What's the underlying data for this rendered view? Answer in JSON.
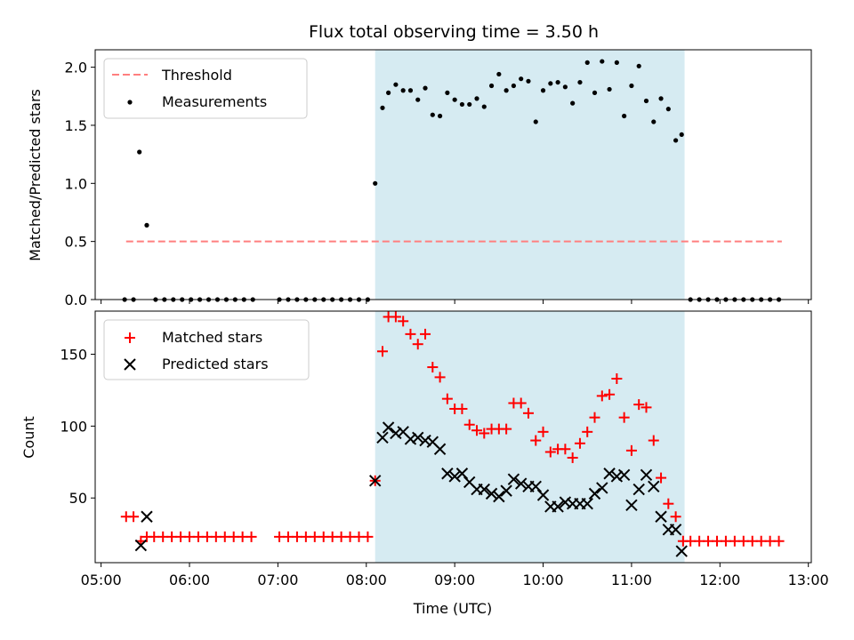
{
  "chart_data": [
    {
      "type": "scatter",
      "title": "Flux total observing time = 3.50 h",
      "xlabel": "",
      "ylabel": "Matched/Predicted stars",
      "xlim": [
        "04:56",
        "13:02"
      ],
      "ylim": [
        0,
        2.15
      ],
      "yticks": [
        0.0,
        0.5,
        1.0,
        1.5,
        2.0
      ],
      "ytick_labels": [
        "0.0",
        "0.5",
        "1.0",
        "1.5",
        "2.0"
      ],
      "grid": false,
      "legend_position": "upper-left",
      "shaded_region": {
        "start": "08:06",
        "end": "11:36",
        "color": "#add8e6"
      },
      "series": [
        {
          "name": "Threshold",
          "style": "dashed-line",
          "color": "#ff7f7f",
          "points": [
            [
              "05:17",
              0.5
            ],
            [
              "12:42",
              0.5
            ]
          ]
        },
        {
          "name": "Measurements",
          "style": "dot",
          "color": "#000000",
          "points": [
            [
              "05:16",
              0
            ],
            [
              "05:22",
              0
            ],
            [
              "05:26",
              1.27
            ],
            [
              "05:31",
              0.64
            ],
            [
              "05:37",
              0
            ],
            [
              "05:43",
              0
            ],
            [
              "05:49",
              0
            ],
            [
              "05:55",
              0
            ],
            [
              "06:01",
              0
            ],
            [
              "06:07",
              0
            ],
            [
              "06:13",
              0
            ],
            [
              "06:19",
              0
            ],
            [
              "06:25",
              0
            ],
            [
              "06:31",
              0
            ],
            [
              "06:37",
              0
            ],
            [
              "06:43",
              0
            ],
            [
              "07:01",
              0
            ],
            [
              "07:07",
              0
            ],
            [
              "07:13",
              0
            ],
            [
              "07:19",
              0
            ],
            [
              "07:25",
              0
            ],
            [
              "07:31",
              0
            ],
            [
              "07:37",
              0
            ],
            [
              "07:43",
              0
            ],
            [
              "07:49",
              0
            ],
            [
              "07:55",
              0
            ],
            [
              "08:01",
              0
            ],
            [
              "08:06",
              1.0
            ],
            [
              "08:11",
              1.65
            ],
            [
              "08:15",
              1.78
            ],
            [
              "08:20",
              1.85
            ],
            [
              "08:25",
              1.8
            ],
            [
              "08:30",
              1.8
            ],
            [
              "08:35",
              1.72
            ],
            [
              "08:40",
              1.82
            ],
            [
              "08:45",
              1.59
            ],
            [
              "08:50",
              1.58
            ],
            [
              "08:55",
              1.78
            ],
            [
              "09:00",
              1.72
            ],
            [
              "09:05",
              1.68
            ],
            [
              "09:10",
              1.68
            ],
            [
              "09:15",
              1.73
            ],
            [
              "09:20",
              1.66
            ],
            [
              "09:25",
              1.84
            ],
            [
              "09:30",
              1.94
            ],
            [
              "09:35",
              1.8
            ],
            [
              "09:40",
              1.84
            ],
            [
              "09:45",
              1.9
            ],
            [
              "09:50",
              1.88
            ],
            [
              "09:55",
              1.53
            ],
            [
              "10:00",
              1.8
            ],
            [
              "10:05",
              1.86
            ],
            [
              "10:10",
              1.87
            ],
            [
              "10:15",
              1.83
            ],
            [
              "10:20",
              1.69
            ],
            [
              "10:25",
              1.87
            ],
            [
              "10:30",
              2.04
            ],
            [
              "10:35",
              1.78
            ],
            [
              "10:40",
              2.05
            ],
            [
              "10:45",
              1.81
            ],
            [
              "10:50",
              2.04
            ],
            [
              "10:55",
              1.58
            ],
            [
              "11:00",
              1.84
            ],
            [
              "11:05",
              2.01
            ],
            [
              "11:10",
              1.71
            ],
            [
              "11:15",
              1.53
            ],
            [
              "11:20",
              1.73
            ],
            [
              "11:25",
              1.64
            ],
            [
              "11:30",
              1.37
            ],
            [
              "11:34",
              1.42
            ],
            [
              "11:40",
              0
            ],
            [
              "11:46",
              0
            ],
            [
              "11:52",
              0
            ],
            [
              "11:58",
              0
            ],
            [
              "12:04",
              0
            ],
            [
              "12:10",
              0
            ],
            [
              "12:16",
              0
            ],
            [
              "12:22",
              0
            ],
            [
              "12:28",
              0
            ],
            [
              "12:34",
              0
            ],
            [
              "12:40",
              0
            ]
          ]
        }
      ]
    },
    {
      "type": "scatter",
      "title": "",
      "xlabel": "Time (UTC)",
      "ylabel": "Count",
      "xlim": [
        "04:56",
        "13:02"
      ],
      "ylim": [
        5,
        180
      ],
      "xticks": [
        "05:00",
        "06:00",
        "07:00",
        "08:00",
        "09:00",
        "10:00",
        "11:00",
        "12:00",
        "13:00"
      ],
      "yticks": [
        50,
        100,
        150
      ],
      "ytick_labels": [
        "50",
        "100",
        "150"
      ],
      "grid": false,
      "legend_position": "upper-left",
      "shaded_region": {
        "start": "08:06",
        "end": "11:36",
        "color": "#add8e6"
      },
      "series": [
        {
          "name": "Matched stars",
          "style": "plus",
          "color": "#ff0000",
          "points": [
            [
              "05:17",
              37
            ],
            [
              "05:22",
              37
            ],
            [
              "05:27",
              20
            ],
            [
              "05:31",
              23
            ],
            [
              "05:36",
              23
            ],
            [
              "05:42",
              23
            ],
            [
              "05:48",
              23
            ],
            [
              "05:54",
              23
            ],
            [
              "06:00",
              23
            ],
            [
              "06:06",
              23
            ],
            [
              "06:12",
              23
            ],
            [
              "06:18",
              23
            ],
            [
              "06:24",
              23
            ],
            [
              "06:30",
              23
            ],
            [
              "06:36",
              23
            ],
            [
              "06:42",
              23
            ],
            [
              "07:01",
              23
            ],
            [
              "07:07",
              23
            ],
            [
              "07:13",
              23
            ],
            [
              "07:19",
              23
            ],
            [
              "07:25",
              23
            ],
            [
              "07:31",
              23
            ],
            [
              "07:37",
              23
            ],
            [
              "07:43",
              23
            ],
            [
              "07:49",
              23
            ],
            [
              "07:55",
              23
            ],
            [
              "08:01",
              23
            ],
            [
              "08:06",
              62
            ],
            [
              "08:11",
              152
            ],
            [
              "08:15",
              176
            ],
            [
              "08:20",
              176
            ],
            [
              "08:25",
              173
            ],
            [
              "08:30",
              164
            ],
            [
              "08:35",
              157
            ],
            [
              "08:40",
              164
            ],
            [
              "08:45",
              141
            ],
            [
              "08:50",
              134
            ],
            [
              "08:55",
              119
            ],
            [
              "09:00",
              112
            ],
            [
              "09:05",
              112
            ],
            [
              "09:10",
              101
            ],
            [
              "09:15",
              97
            ],
            [
              "09:20",
              95
            ],
            [
              "09:25",
              98
            ],
            [
              "09:30",
              98
            ],
            [
              "09:35",
              98
            ],
            [
              "09:40",
              116
            ],
            [
              "09:45",
              116
            ],
            [
              "09:50",
              109
            ],
            [
              "09:55",
              90
            ],
            [
              "10:00",
              96
            ],
            [
              "10:05",
              82
            ],
            [
              "10:10",
              84
            ],
            [
              "10:15",
              84
            ],
            [
              "10:20",
              78
            ],
            [
              "10:25",
              88
            ],
            [
              "10:30",
              96
            ],
            [
              "10:35",
              106
            ],
            [
              "10:40",
              121
            ],
            [
              "10:45",
              122
            ],
            [
              "10:50",
              133
            ],
            [
              "10:55",
              106
            ],
            [
              "11:00",
              83
            ],
            [
              "11:05",
              115
            ],
            [
              "11:10",
              113
            ],
            [
              "11:15",
              90
            ],
            [
              "11:20",
              64
            ],
            [
              "11:25",
              46
            ],
            [
              "11:30",
              37
            ],
            [
              "11:35",
              20
            ],
            [
              "11:40",
              20
            ],
            [
              "11:46",
              20
            ],
            [
              "11:52",
              20
            ],
            [
              "11:58",
              20
            ],
            [
              "12:04",
              20
            ],
            [
              "12:10",
              20
            ],
            [
              "12:16",
              20
            ],
            [
              "12:22",
              20
            ],
            [
              "12:28",
              20
            ],
            [
              "12:34",
              20
            ],
            [
              "12:40",
              20
            ]
          ]
        },
        {
          "name": "Predicted stars",
          "style": "x",
          "color": "#000000",
          "points": [
            [
              "05:27",
              17
            ],
            [
              "05:31",
              37
            ],
            [
              "08:06",
              62
            ],
            [
              "08:11",
              92
            ],
            [
              "08:15",
              99
            ],
            [
              "08:20",
              95
            ],
            [
              "08:25",
              96
            ],
            [
              "08:30",
              91
            ],
            [
              "08:35",
              92
            ],
            [
              "08:40",
              90
            ],
            [
              "08:45",
              89
            ],
            [
              "08:50",
              84
            ],
            [
              "08:55",
              67
            ],
            [
              "09:00",
              65
            ],
            [
              "09:05",
              67
            ],
            [
              "09:10",
              61
            ],
            [
              "09:15",
              56
            ],
            [
              "09:20",
              56
            ],
            [
              "09:25",
              53
            ],
            [
              "09:30",
              51
            ],
            [
              "09:35",
              55
            ],
            [
              "09:40",
              63
            ],
            [
              "09:45",
              60
            ],
            [
              "09:50",
              58
            ],
            [
              "09:55",
              58
            ],
            [
              "10:00",
              52
            ],
            [
              "10:05",
              44
            ],
            [
              "10:10",
              44
            ],
            [
              "10:15",
              47
            ],
            [
              "10:20",
              46
            ],
            [
              "10:25",
              46
            ],
            [
              "10:30",
              46
            ],
            [
              "10:35",
              53
            ],
            [
              "10:40",
              57
            ],
            [
              "10:45",
              67
            ],
            [
              "10:50",
              65
            ],
            [
              "10:55",
              66
            ],
            [
              "11:00",
              45
            ],
            [
              "11:05",
              56
            ],
            [
              "11:10",
              66
            ],
            [
              "11:15",
              58
            ],
            [
              "11:20",
              37
            ],
            [
              "11:25",
              28
            ],
            [
              "11:30",
              28
            ],
            [
              "11:34",
              13
            ]
          ]
        }
      ]
    }
  ]
}
